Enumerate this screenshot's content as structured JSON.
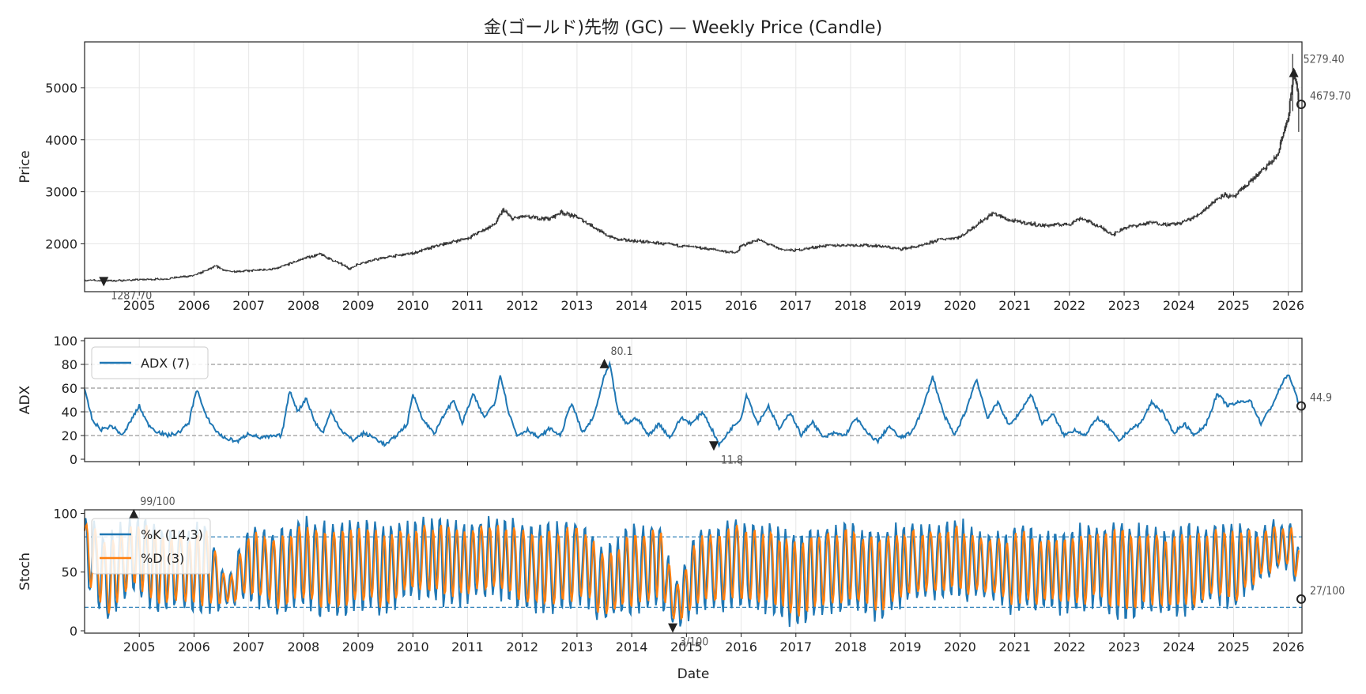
{
  "chart_data": {
    "title": "金(ゴールド)先物 (GC) — Weekly Price (Candle)",
    "xlabel": "Date",
    "years": [
      "2005",
      "2006",
      "2007",
      "2008",
      "2009",
      "2010",
      "2011",
      "2012",
      "2013",
      "2014",
      "2015",
      "2016",
      "2017",
      "2018",
      "2019",
      "2020",
      "2021",
      "2022",
      "2023",
      "2024",
      "2025",
      "2026"
    ],
    "x_range": [
      2004.0,
      2026.25
    ],
    "panels": [
      {
        "type": "candlestick",
        "ylabel": "Price",
        "ylim": [
          1080,
          5880
        ],
        "yticks": [
          "2000",
          "3000",
          "4000",
          "5000"
        ],
        "ytick_values": [
          2000,
          3000,
          4000,
          5000
        ],
        "grid": true,
        "series_anchors": {
          "t": [
            2004.0,
            2004.5,
            2005.0,
            2005.5,
            2006.0,
            2006.4,
            2006.6,
            2007.0,
            2007.5,
            2008.0,
            2008.3,
            2008.7,
            2008.85,
            2009.0,
            2009.5,
            2010.0,
            2010.5,
            2011.0,
            2011.5,
            2011.65,
            2011.8,
            2012.0,
            2012.5,
            2012.7,
            2013.0,
            2013.3,
            2013.5,
            2013.75,
            2014.0,
            2014.5,
            2015.0,
            2015.5,
            2015.9,
            2016.0,
            2016.3,
            2016.7,
            2016.95,
            2017.5,
            2018.0,
            2018.5,
            2018.9,
            2019.3,
            2019.6,
            2020.0,
            2020.3,
            2020.6,
            2020.9,
            2021.2,
            2021.5,
            2022.0,
            2022.2,
            2022.5,
            2022.8,
            2023.0,
            2023.5,
            2023.8,
            2024.0,
            2024.3,
            2024.8,
            2025.0,
            2025.3,
            2025.6,
            2025.8,
            2025.95,
            2026.0,
            2026.05,
            2026.1,
            2026.15,
            2026.2
          ],
          "price": [
            1300,
            1290,
            1310,
            1330,
            1390,
            1570,
            1470,
            1480,
            1520,
            1720,
            1800,
            1600,
            1520,
            1620,
            1740,
            1820,
            1980,
            2110,
            2380,
            2660,
            2480,
            2520,
            2480,
            2610,
            2510,
            2330,
            2180,
            2080,
            2060,
            2010,
            1950,
            1890,
            1820,
            1960,
            2080,
            1900,
            1870,
            1960,
            1980,
            1960,
            1900,
            1960,
            2080,
            2130,
            2370,
            2590,
            2450,
            2400,
            2350,
            2380,
            2500,
            2350,
            2180,
            2310,
            2410,
            2370,
            2390,
            2520,
            2950,
            2890,
            3200,
            3480,
            3700,
            4280,
            4450,
            4900,
            5279.4,
            5050,
            4679.7
          ]
        },
        "annotations": [
          {
            "label": "5279.40",
            "x": 2026.1,
            "y": 5279.4,
            "marker": "max"
          },
          {
            "label": "4679.70",
            "x": 2026.2,
            "y": 4679.7,
            "marker": "last"
          },
          {
            "label": "1287.70",
            "x": 2004.35,
            "y": 1287.7,
            "marker": "min"
          }
        ]
      },
      {
        "type": "line",
        "ylabel": "ADX",
        "ylim": [
          -2,
          102
        ],
        "yticks": [
          "0",
          "20",
          "40",
          "60",
          "80",
          "100"
        ],
        "ytick_values": [
          0,
          20,
          40,
          60,
          80,
          100
        ],
        "hlines": [
          20,
          40,
          60,
          80
        ],
        "hline_style": "gray-dashed",
        "series": [
          {
            "name": "ADX (7)",
            "color": "#1f77b4",
            "t": [
              2004.0,
              2004.15,
              2004.3,
              2004.5,
              2004.7,
              2004.85,
              2005.0,
              2005.15,
              2005.3,
              2005.5,
              2005.7,
              2005.9,
              2006.05,
              2006.2,
              2006.4,
              2006.55,
              2006.8,
              2007.0,
              2007.2,
              2007.4,
              2007.6,
              2007.75,
              2007.9,
              2008.05,
              2008.2,
              2008.35,
              2008.5,
              2008.7,
              2008.9,
              2009.1,
              2009.3,
              2009.5,
              2009.7,
              2009.9,
              2010.0,
              2010.2,
              2010.4,
              2010.6,
              2010.75,
              2010.9,
              2011.1,
              2011.3,
              2011.5,
              2011.6,
              2011.75,
              2011.9,
              2012.1,
              2012.3,
              2012.5,
              2012.7,
              2012.9,
              2013.1,
              2013.3,
              2013.5,
              2013.6,
              2013.75,
              2013.9,
              2014.1,
              2014.3,
              2014.5,
              2014.7,
              2014.9,
              2015.1,
              2015.3,
              2015.5,
              2015.6,
              2015.8,
              2016.0,
              2016.1,
              2016.3,
              2016.5,
              2016.7,
              2016.9,
              2017.1,
              2017.3,
              2017.5,
              2017.7,
              2017.9,
              2018.1,
              2018.3,
              2018.5,
              2018.7,
              2018.9,
              2019.1,
              2019.3,
              2019.5,
              2019.7,
              2019.9,
              2020.1,
              2020.3,
              2020.5,
              2020.7,
              2020.9,
              2021.1,
              2021.3,
              2021.5,
              2021.7,
              2021.9,
              2022.1,
              2022.3,
              2022.5,
              2022.7,
              2022.9,
              2023.1,
              2023.3,
              2023.5,
              2023.7,
              2023.9,
              2024.1,
              2024.3,
              2024.5,
              2024.7,
              2024.9,
              2025.1,
              2025.3,
              2025.5,
              2025.7,
              2025.9,
              2026.0,
              2026.1,
              2026.2
            ],
            "values": [
              58,
              32,
              25,
              28,
              20,
              33,
              45,
              30,
              24,
              20,
              22,
              30,
              60,
              38,
              24,
              18,
              15,
              22,
              18,
              19,
              20,
              58,
              40,
              52,
              32,
              22,
              40,
              24,
              16,
              22,
              18,
              12,
              20,
              30,
              55,
              32,
              22,
              40,
              50,
              30,
              55,
              35,
              48,
              72,
              40,
              20,
              25,
              18,
              26,
              20,
              48,
              22,
              35,
              70,
              80.1,
              40,
              30,
              35,
              20,
              30,
              18,
              35,
              30,
              40,
              22,
              11.8,
              25,
              35,
              55,
              30,
              45,
              25,
              40,
              20,
              32,
              18,
              22,
              20,
              35,
              22,
              15,
              28,
              18,
              22,
              40,
              70,
              38,
              20,
              40,
              68,
              35,
              48,
              28,
              40,
              55,
              30,
              38,
              20,
              25,
              20,
              35,
              28,
              15,
              25,
              30,
              48,
              40,
              22,
              30,
              20,
              30,
              55,
              45,
              48,
              50,
              30,
              45,
              65,
              72,
              60,
              44.9
            ]
          }
        ],
        "legend_position": "top-left",
        "annotations": [
          {
            "label": "80.1",
            "x": 2013.5,
            "y": 80.1,
            "marker": "max"
          },
          {
            "label": "11.8",
            "x": 2015.5,
            "y": 11.8,
            "marker": "min"
          },
          {
            "label": "44.9",
            "x": 2026.2,
            "y": 44.9,
            "marker": "last"
          }
        ]
      },
      {
        "type": "line",
        "ylabel": "Stoch",
        "ylim": [
          -2,
          103
        ],
        "yticks": [
          "0",
          "50",
          "100"
        ],
        "ytick_values": [
          0,
          50,
          100
        ],
        "hlines": [
          20,
          80
        ],
        "hline_style": "blue-dashed",
        "oscillation_weeks": 8,
        "series": [
          {
            "name": "%K (14,3)",
            "color": "#1f77b4",
            "envelope": {
              "t": [
                2004.0,
                2004.4,
                2004.9,
                2005.3,
                2005.7,
                2006.2,
                2006.6,
                2007.0,
                2007.5,
                2008.0,
                2008.5,
                2009.0,
                2009.5,
                2010.0,
                2010.5,
                2011.0,
                2011.5,
                2012.0,
                2012.5,
                2013.0,
                2013.5,
                2014.0,
                2014.5,
                2014.8,
                2015.2,
                2015.6,
                2016.0,
                2016.5,
                2017.0,
                2017.5,
                2018.0,
                2018.5,
                2019.0,
                2019.5,
                2020.0,
                2020.5,
                2021.0,
                2021.5,
                2022.0,
                2022.5,
                2023.0,
                2023.5,
                2024.0,
                2024.5,
                2025.0,
                2025.5,
                2026.0,
                2026.2
              ],
              "high": [
                98,
                80,
                99,
                90,
                85,
                92,
                45,
                88,
                85,
                96,
                92,
                95,
                90,
                92,
                96,
                90,
                97,
                92,
                90,
                95,
                70,
                90,
                92,
                40,
                88,
                90,
                95,
                92,
                85,
                90,
                92,
                85,
                92,
                88,
                95,
                80,
                90,
                85,
                88,
                90,
                92,
                88,
                92,
                90,
                94,
                88,
                95,
                70
              ],
              "low": [
                40,
                10,
                35,
                12,
                20,
                15,
                20,
                25,
                15,
                20,
                10,
                18,
                15,
                30,
                20,
                25,
                30,
                20,
                15,
                20,
                10,
                15,
                20,
                3,
                15,
                18,
                20,
                15,
                4,
                15,
                20,
                8,
                25,
                30,
                25,
                30,
                15,
                20,
                15,
                20,
                8,
                20,
                10,
                25,
                20,
                45,
                55,
                27
              ]
            },
            "annotations": []
          },
          {
            "name": "%D (3)",
            "color": "#ff7f0e"
          }
        ],
        "legend_position": "top-left",
        "annotations": [
          {
            "label": "99/100",
            "x": 2004.9,
            "y": 99,
            "marker": "max"
          },
          {
            "label": "3/100",
            "x": 2014.75,
            "y": 3,
            "marker": "min"
          },
          {
            "label": "27/100",
            "x": 2026.2,
            "y": 27,
            "marker": "last"
          }
        ]
      }
    ]
  }
}
